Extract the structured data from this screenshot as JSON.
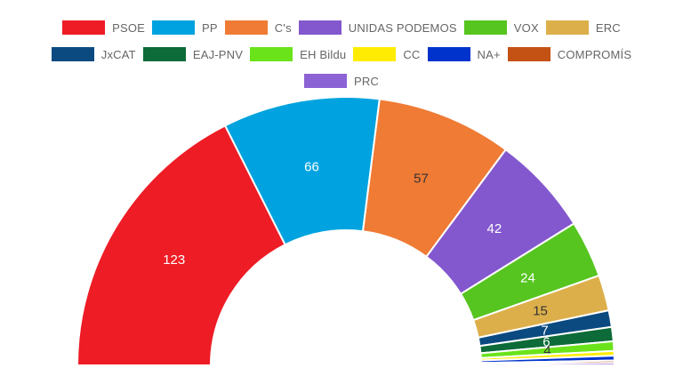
{
  "chart_data": {
    "type": "pie",
    "subtype": "half-doughnut (parliament seat distribution)",
    "title": "",
    "legend_position": "top",
    "categories": [
      "PSOE",
      "PP",
      "C's",
      "UNIDAS PODEMOS",
      "VOX",
      "ERC",
      "JxCAT",
      "EAJ-PNV",
      "EH Bildu",
      "CC",
      "NA+",
      "COMPROMÍS",
      "PRC"
    ],
    "values": [
      123,
      66,
      57,
      42,
      24,
      15,
      7,
      6,
      4,
      2,
      2,
      1,
      1
    ],
    "data_labels": [
      "123",
      "66",
      "57",
      "42",
      "24",
      "15",
      "7",
      "6",
      "4",
      "",
      "",
      "",
      ""
    ],
    "colors": [
      "#ee1c25",
      "#00a3df",
      "#ef7b35",
      "#8358ce",
      "#56c51f",
      "#dcaf4b",
      "#0a4a80",
      "#0c6b38",
      "#6ae31b",
      "#ffec02",
      "#0033cc",
      "#c45214",
      "#8c63d4"
    ],
    "label_colors": [
      "#ffffff",
      "#ffffff",
      "#333333",
      "#ffffff",
      "#ffffff",
      "#333333",
      "#ffffff",
      "#ffffff",
      "#333333",
      "#333333",
      "#333333",
      "#333333",
      "#333333"
    ]
  }
}
